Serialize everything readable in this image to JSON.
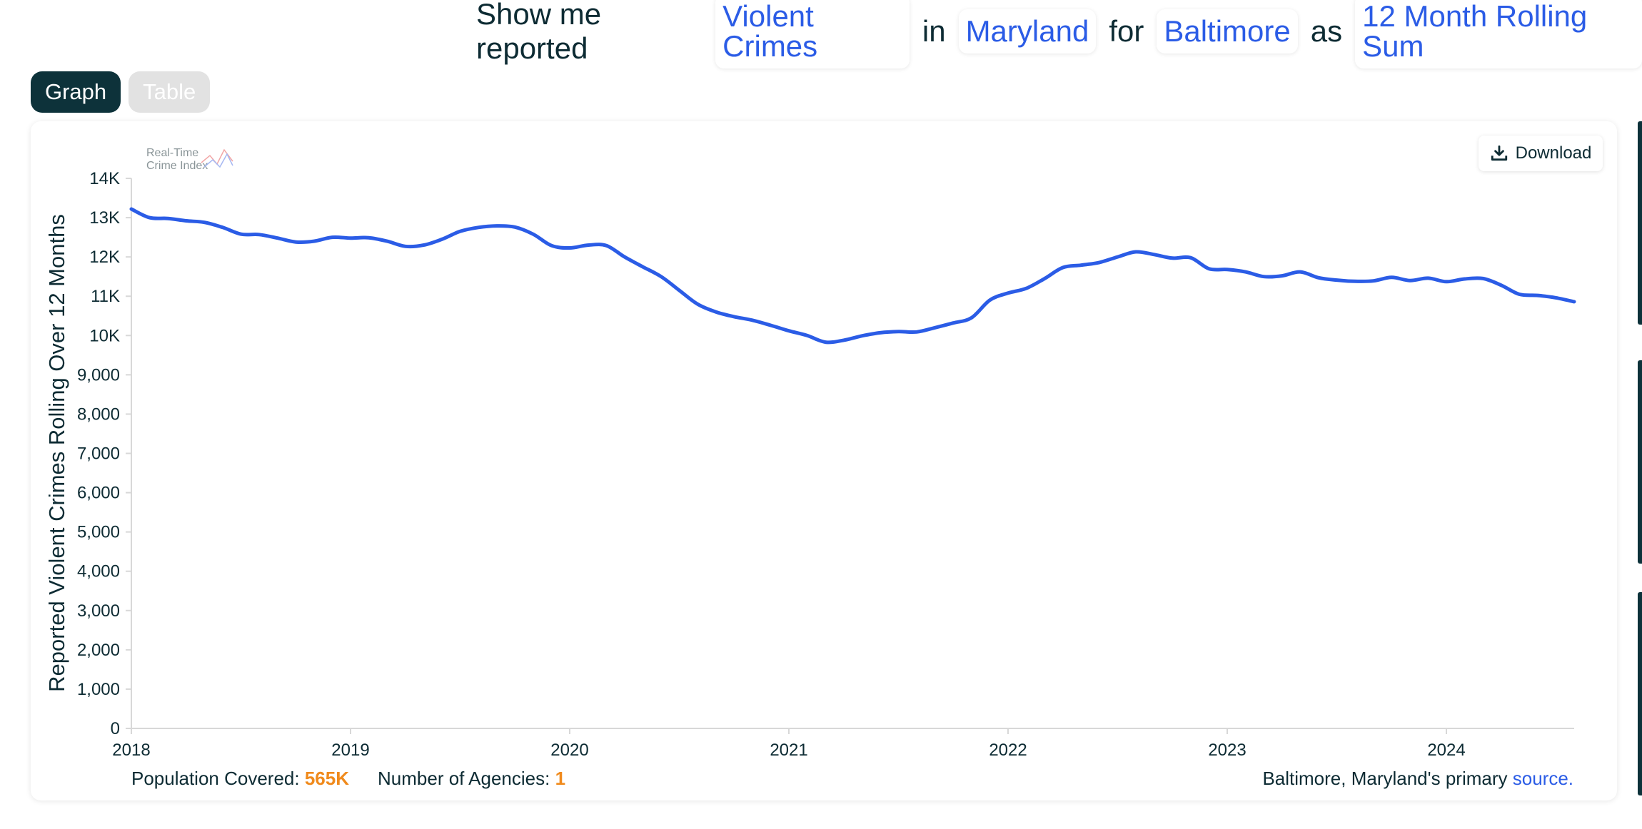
{
  "query": {
    "w1": "Show me reported",
    "crime_type": "Violent Crimes",
    "w2": "in",
    "state": "Maryland",
    "w3": "for",
    "agency": "Baltimore",
    "w4": "as",
    "measure": "12 Month Rolling Sum"
  },
  "tabs": {
    "graph": "Graph",
    "table": "Table"
  },
  "logo": {
    "line1": "Real-Time",
    "line2": "Crime Index"
  },
  "download": {
    "label": "Download",
    "icon": "download-icon"
  },
  "footer": {
    "population_label": "Population Covered:",
    "population_value": "565K",
    "agencies_label": "Number of Agencies:",
    "agencies_value": "1",
    "source_text": "Baltimore, Maryland's primary",
    "source_link": "source."
  },
  "colors": {
    "line": "#2b5ce6",
    "accent": "#f08a1c",
    "dark": "#0d323a"
  },
  "chart_data": {
    "type": "line",
    "ylabel": "Reported Violent Crimes Rolling Over 12 Months",
    "ylim": [
      0,
      14000
    ],
    "y_ticks": [
      0,
      1000,
      2000,
      3000,
      4000,
      5000,
      6000,
      7000,
      8000,
      9000,
      10000,
      11000,
      12000,
      13000,
      14000
    ],
    "y_tick_labels": [
      "0",
      "1,000",
      "2,000",
      "3,000",
      "4,000",
      "5,000",
      "6,000",
      "7,000",
      "8,000",
      "9,000",
      "10K",
      "11K",
      "12K",
      "13K",
      "14K"
    ],
    "x_ticks": [
      2018,
      2019,
      2020,
      2021,
      2022,
      2023,
      2024
    ],
    "x_tick_labels": [
      "2018",
      "2019",
      "2020",
      "2021",
      "2022",
      "2023",
      "2024"
    ],
    "xlim": [
      2018.0,
      2024.583
    ],
    "grid": false,
    "series": [
      {
        "x": [
          2018.0,
          2018.083,
          2018.167,
          2018.25,
          2018.333,
          2018.417,
          2018.5,
          2018.583,
          2018.667,
          2018.75,
          2018.833,
          2018.917,
          2019.0,
          2019.083,
          2019.167,
          2019.25,
          2019.333,
          2019.417,
          2019.5,
          2019.583,
          2019.667,
          2019.75,
          2019.833,
          2019.917,
          2020.0,
          2020.083,
          2020.167,
          2020.25,
          2020.333,
          2020.417,
          2020.5,
          2020.583,
          2020.667,
          2020.75,
          2020.833,
          2020.917,
          2021.0,
          2021.083,
          2021.167,
          2021.25,
          2021.333,
          2021.417,
          2021.5,
          2021.583,
          2021.667,
          2021.75,
          2021.833,
          2021.917,
          2022.0,
          2022.083,
          2022.167,
          2022.25,
          2022.333,
          2022.417,
          2022.5,
          2022.583,
          2022.667,
          2022.75,
          2022.833,
          2022.917,
          2023.0,
          2023.083,
          2023.167,
          2023.25,
          2023.333,
          2023.417,
          2023.5,
          2023.583,
          2023.667,
          2023.75,
          2023.833,
          2023.917,
          2024.0,
          2024.083,
          2024.167,
          2024.25,
          2024.333,
          2024.417,
          2024.5,
          2024.583
        ],
        "values": [
          13220,
          13000,
          12980,
          12920,
          12880,
          12750,
          12580,
          12570,
          12480,
          12380,
          12400,
          12500,
          12480,
          12490,
          12400,
          12270,
          12300,
          12450,
          12650,
          12750,
          12790,
          12760,
          12580,
          12290,
          12230,
          12300,
          12290,
          12000,
          11750,
          11500,
          11150,
          10800,
          10600,
          10480,
          10390,
          10260,
          10120,
          10000,
          9830,
          9880,
          9990,
          10070,
          10100,
          10090,
          10200,
          10320,
          10450,
          10900,
          11080,
          11200,
          11450,
          11730,
          11790,
          11860,
          12000,
          12130,
          12060,
          11970,
          11980,
          11700,
          11680,
          11620,
          11500,
          11520,
          11620,
          11470,
          11410,
          11380,
          11390,
          11480,
          11400,
          11460,
          11370,
          11440,
          11450,
          11280,
          11050,
          11020,
          10960,
          10860
        ]
      }
    ]
  }
}
